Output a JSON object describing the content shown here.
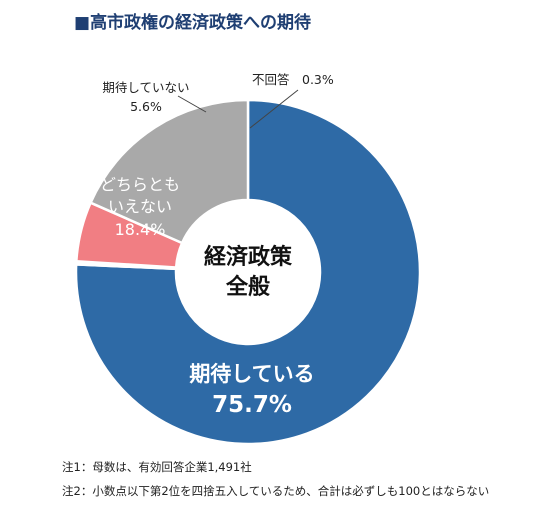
{
  "title": {
    "marker": "■",
    "text": "高市政権の経済政策への期待"
  },
  "chart_data": {
    "type": "pie",
    "variant": "donut",
    "center_label": [
      "経済政策",
      "全般"
    ],
    "slices": [
      {
        "label": "期待している",
        "value": 75.7,
        "value_text": "75.7%",
        "color": "#2e6aa6"
      },
      {
        "label": "不回答",
        "value": 0.3,
        "value_text": "0.3%",
        "color": "#ffffff"
      },
      {
        "label": "期待していない",
        "value": 5.6,
        "value_text": "5.6%",
        "color": "#f17e83"
      },
      {
        "label": "どちらとも\nいえない",
        "value": 18.4,
        "value_text": "18.4%",
        "color": "#a9a9a9"
      }
    ]
  },
  "notes": [
    "注1：母数は、有効回答企業1,491社",
    "注2：小数点以下第2位を四捨五入しているため、合計は必ずしも100とはならない"
  ]
}
